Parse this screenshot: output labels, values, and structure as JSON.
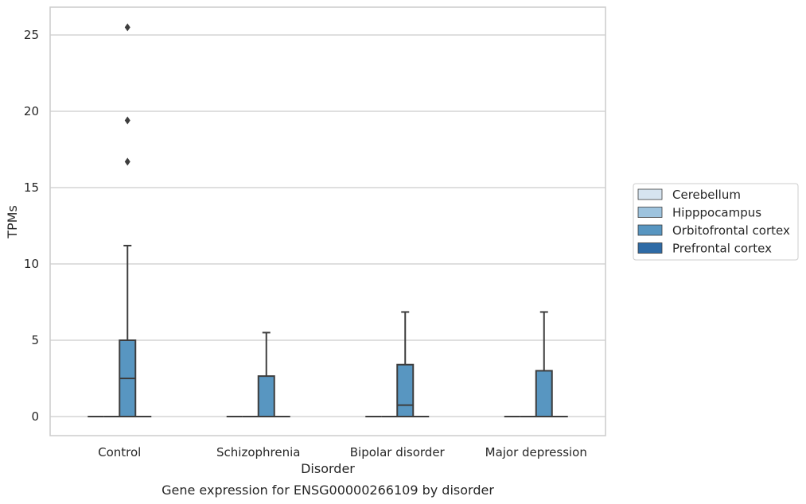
{
  "chart_data": {
    "type": "box",
    "title": "Gene expression for ENSG00000266109 by disorder",
    "xlabel": "Disorder",
    "ylabel": "TPMs",
    "ylim": [
      -1.25,
      26.8
    ],
    "yticks": [
      0,
      5,
      10,
      15,
      20,
      25
    ],
    "grid": true,
    "legend_position": "right",
    "categories": [
      "Control",
      "Schizophrenia",
      "Bipolar disorder",
      "Major depression"
    ],
    "series": [
      {
        "name": "Cerebellum",
        "color": "#d6e4f0",
        "boxes": [
          {
            "min": 0,
            "q1": 0,
            "median": 0,
            "q3": 0,
            "max": 0,
            "outliers": []
          },
          {
            "min": 0,
            "q1": 0,
            "median": 0,
            "q3": 0,
            "max": 0,
            "outliers": []
          },
          {
            "min": 0,
            "q1": 0,
            "median": 0,
            "q3": 0,
            "max": 0,
            "outliers": []
          },
          {
            "min": 0,
            "q1": 0,
            "median": 0,
            "q3": 0,
            "max": 0,
            "outliers": []
          }
        ]
      },
      {
        "name": "Hipppocampus",
        "color": "#9dc3de",
        "boxes": [
          {
            "min": 0,
            "q1": 0,
            "median": 0,
            "q3": 0,
            "max": 0,
            "outliers": []
          },
          {
            "min": 0,
            "q1": 0,
            "median": 0,
            "q3": 0,
            "max": 0,
            "outliers": []
          },
          {
            "min": 0,
            "q1": 0,
            "median": 0,
            "q3": 0,
            "max": 0,
            "outliers": []
          },
          {
            "min": 0,
            "q1": 0,
            "median": 0,
            "q3": 0,
            "max": 0,
            "outliers": []
          }
        ]
      },
      {
        "name": "Orbitofrontal cortex",
        "color": "#5896c1",
        "boxes": [
          {
            "min": 0,
            "q1": 0,
            "median": 2.5,
            "q3": 5.0,
            "max": 11.2,
            "outliers": [
              16.7,
              19.4,
              25.5
            ]
          },
          {
            "min": 0,
            "q1": 0,
            "median": 0,
            "q3": 2.65,
            "max": 5.5,
            "outliers": []
          },
          {
            "min": 0,
            "q1": 0,
            "median": 0.75,
            "q3": 3.4,
            "max": 6.85,
            "outliers": []
          },
          {
            "min": 0,
            "q1": 0,
            "median": 0,
            "q3": 3.0,
            "max": 6.85,
            "outliers": []
          }
        ]
      },
      {
        "name": "Prefrontal cortex",
        "color": "#2e6ba6",
        "boxes": [
          {
            "min": 0,
            "q1": 0,
            "median": 0,
            "q3": 0,
            "max": 0,
            "outliers": []
          },
          {
            "min": 0,
            "q1": 0,
            "median": 0,
            "q3": 0,
            "max": 0,
            "outliers": []
          },
          {
            "min": 0,
            "q1": 0,
            "median": 0,
            "q3": 0,
            "max": 0,
            "outliers": []
          },
          {
            "min": 0,
            "q1": 0,
            "median": 0,
            "q3": 0,
            "max": 0,
            "outliers": []
          }
        ]
      }
    ]
  }
}
